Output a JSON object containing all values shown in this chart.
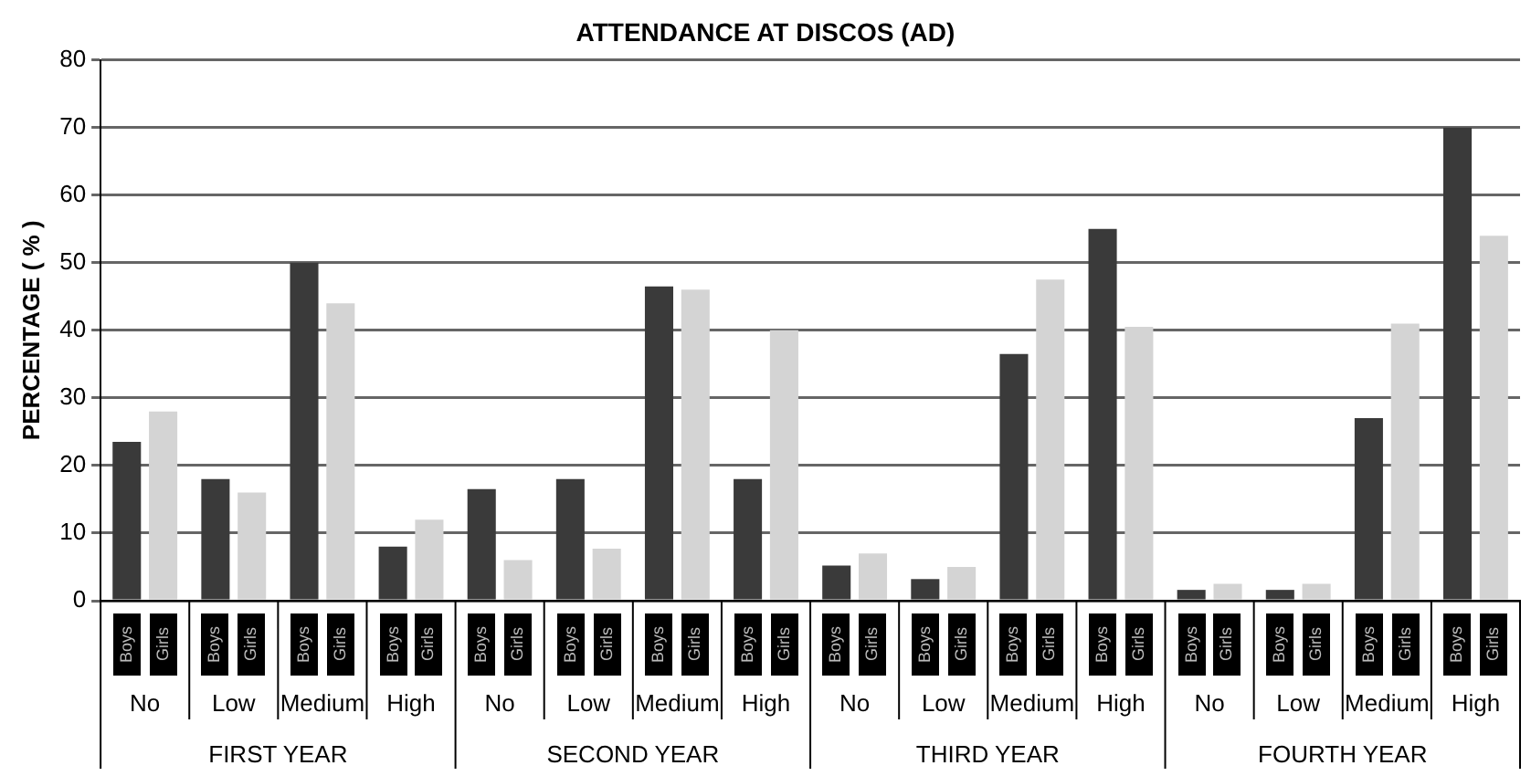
{
  "chart_data": {
    "type": "bar",
    "title": "ATTENDANCE AT DISCOS (AD)",
    "ylabel": "PERCENTAGE ( % )",
    "categories": [
      "No",
      "Low",
      "Medium",
      "High",
      "No",
      "Low",
      "Medium",
      "High",
      "No",
      "Low",
      "Medium",
      "High",
      "No",
      "Low",
      "Medium",
      "High"
    ],
    "annotations": [
      "FIRST YEAR",
      "SECOND YEAR",
      "THIRD YEAR",
      "FOURTH YEAR"
    ],
    "series": [
      {
        "name": "Boys",
        "color": "#3a3a3a",
        "values": [
          23.5,
          18,
          50,
          8,
          16.5,
          18,
          46.5,
          18,
          5.2,
          3.2,
          36.5,
          55,
          1.6,
          1.6,
          27,
          70
        ]
      },
      {
        "name": "Girls",
        "color": "#d4d4d4",
        "values": [
          28,
          16,
          44,
          12,
          6,
          7.7,
          46,
          40,
          7,
          5,
          47.5,
          40.5,
          2.5,
          2.5,
          41,
          54
        ]
      }
    ],
    "ylim": [
      0,
      80
    ],
    "yticks": [
      0,
      10,
      20,
      30,
      40,
      50,
      60,
      70,
      80
    ],
    "grid": "y",
    "legend": false
  }
}
